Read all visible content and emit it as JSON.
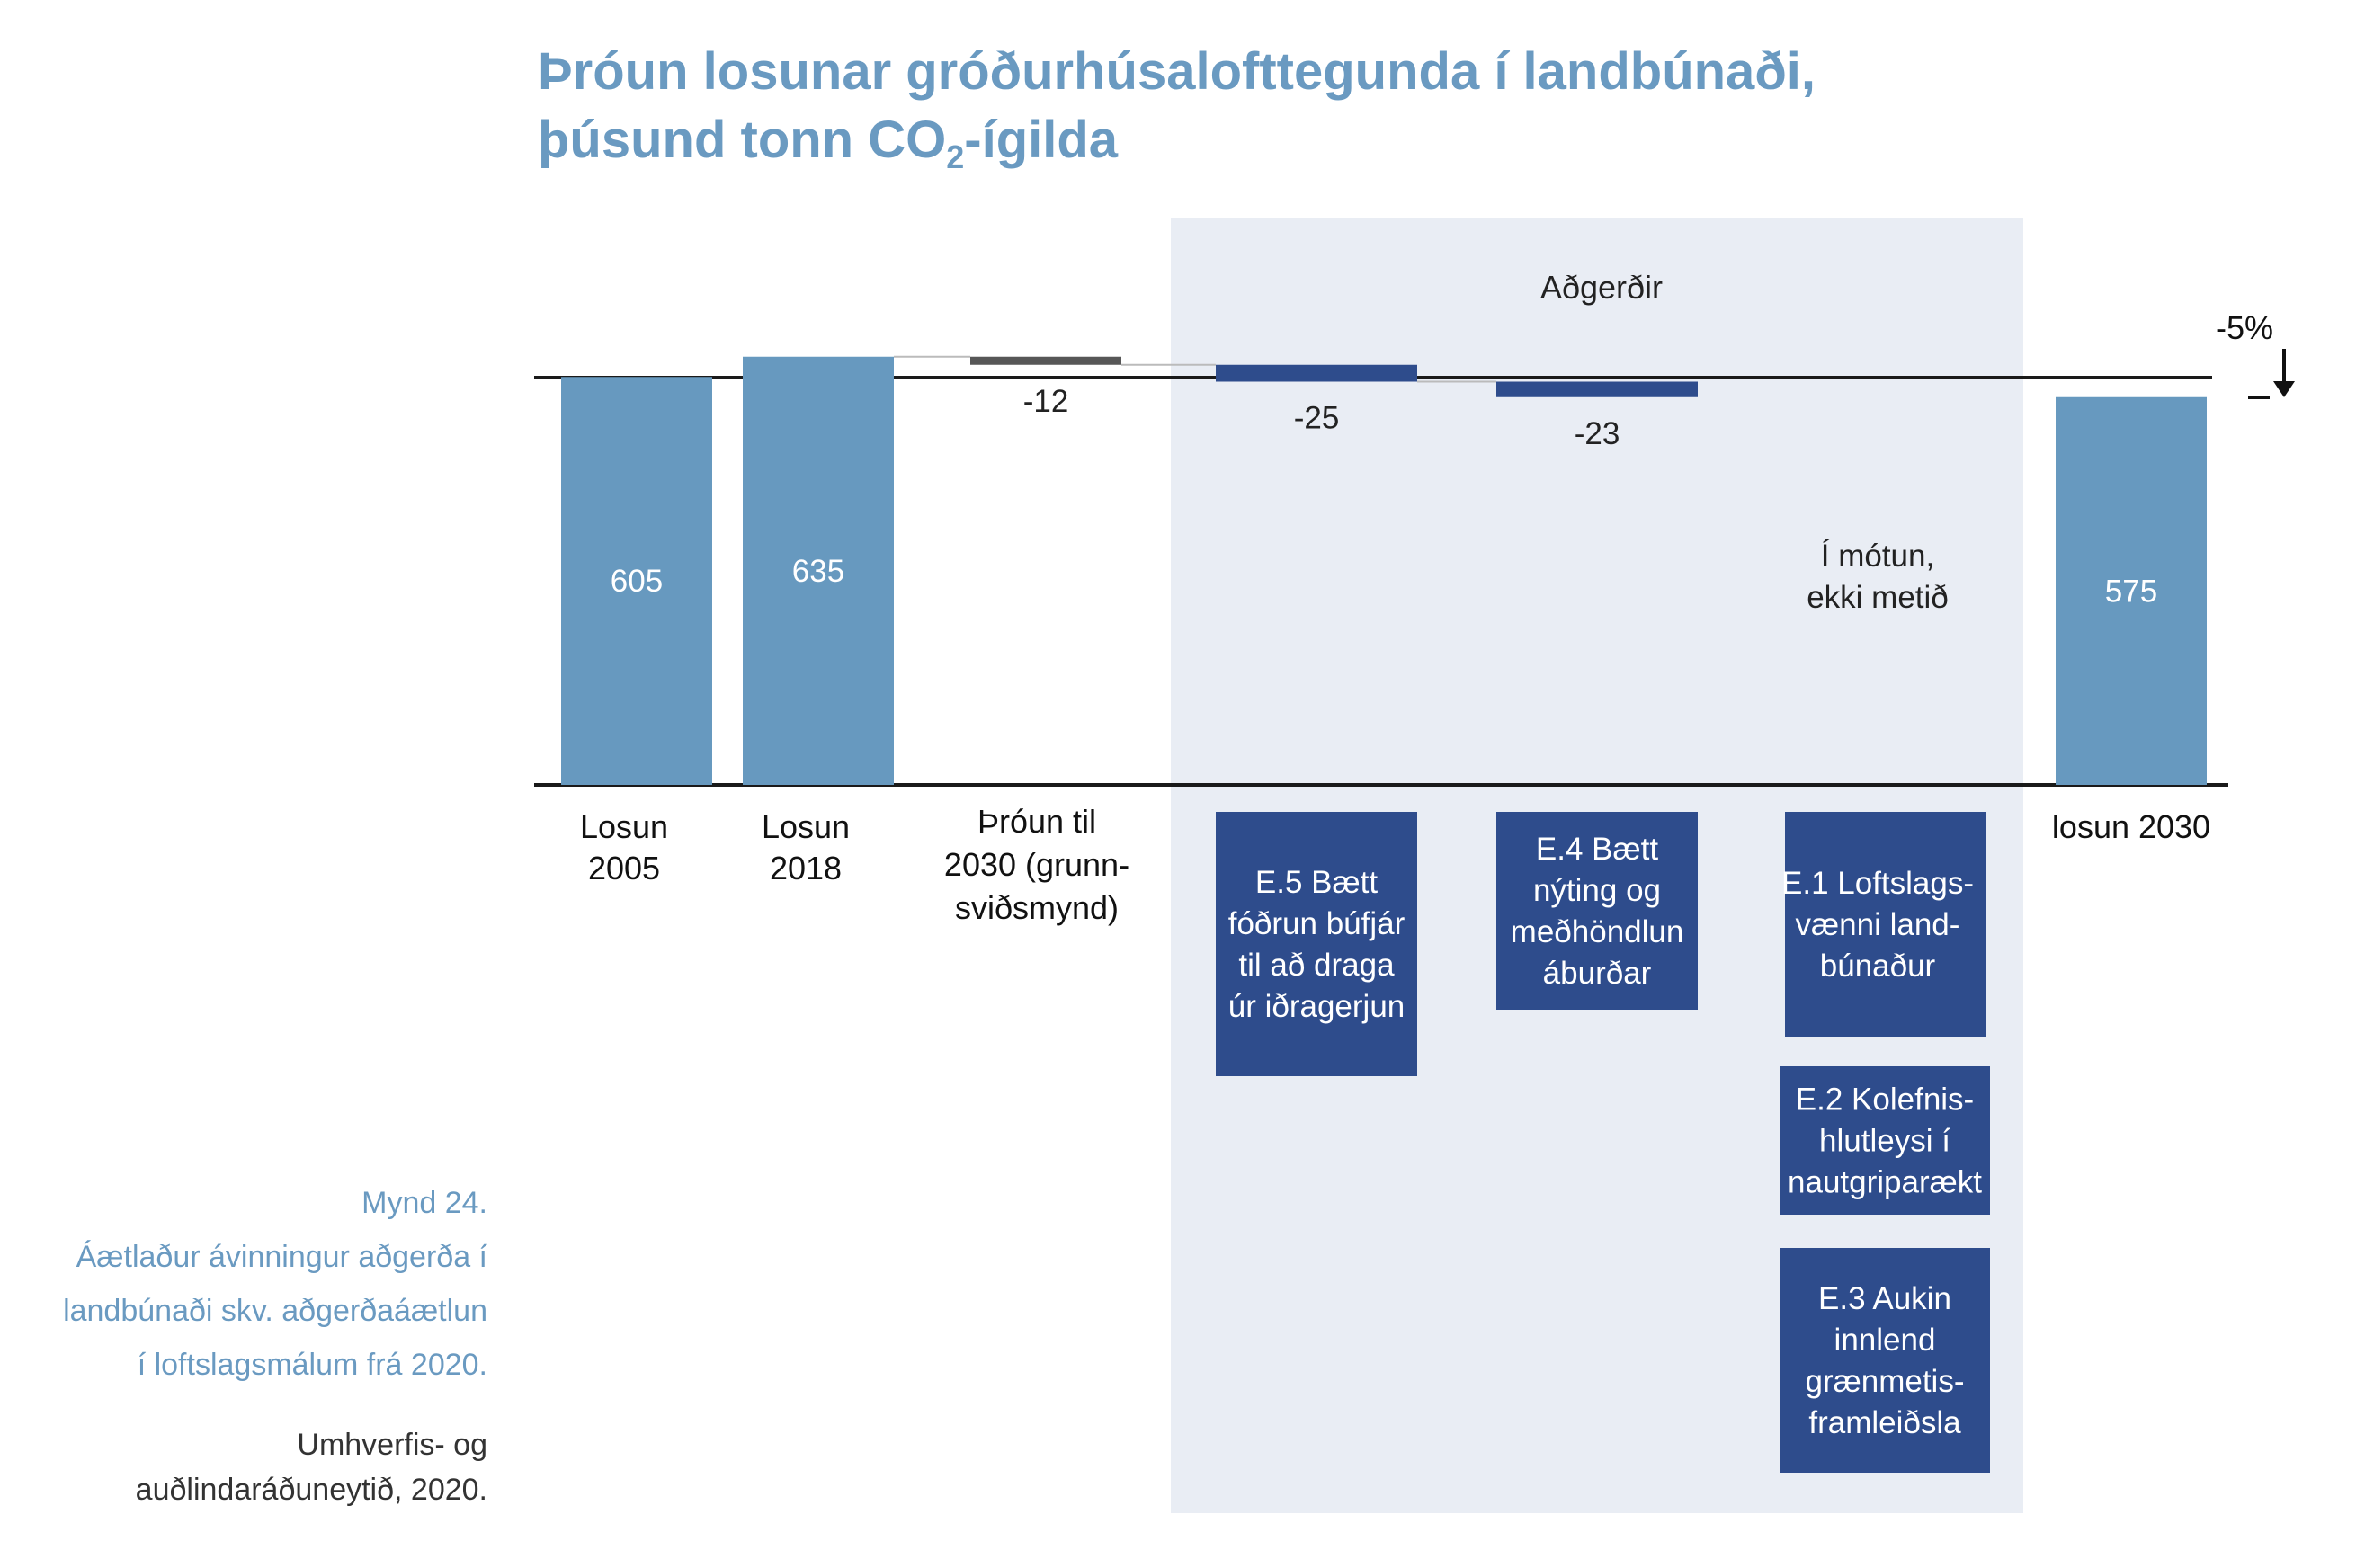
{
  "title": {
    "line1": "Þróun losunar gróðurhúsalofttegunda í landbúnaði,",
    "line2_pre": "þúsund tonn CO",
    "line2_sub": "2",
    "line2_post": "-ígilda"
  },
  "caption": {
    "figure": "Mynd 24.",
    "line1": "Áætlaður ávinningur aðgerða í",
    "line2": "landbúnaði skv. aðgerðaáætlun",
    "line3": "í loftslagsmálum frá 2020.",
    "source_line1": "Umhverfis- og",
    "source_line2": "auðlindaráðuneytið, 2020."
  },
  "colors": {
    "total_bar": "#6799bf",
    "grunn_bar": "#575757",
    "action_bar": "#2e4c8c",
    "action_box": "#2e4c8c",
    "panel": "#e9edf4",
    "title": "#6a9ac1",
    "axis": "#1a1a1a"
  },
  "chart_data": {
    "type": "waterfall",
    "unit": "þúsund tonn CO2-ígilda",
    "panel_label": "Aðgerðir",
    "change_label": "-5%",
    "not_assessed_line1": "Í mótun,",
    "not_assessed_line2": "ekki metið",
    "steps": [
      {
        "kind": "total",
        "value": 605,
        "value_label": "605",
        "label_lines": [
          "Losun",
          "2005"
        ]
      },
      {
        "kind": "total",
        "value": 635,
        "value_label": "635",
        "label_lines": [
          "Losun",
          "2018"
        ]
      },
      {
        "kind": "delta",
        "value": -12,
        "value_label": "-12",
        "label_lines": [
          "Þróun til",
          "2030 (grunn-",
          "sviðsmynd)"
        ]
      },
      {
        "kind": "delta",
        "value": -25,
        "value_label": "-25",
        "label_lines": [
          "E.5 Bætt",
          "fóðrun búfjár",
          "til að draga",
          "úr iðragerjun"
        ]
      },
      {
        "kind": "delta",
        "value": -23,
        "value_label": "-23",
        "label_lines": [
          "E.4 Bætt",
          "nýting og",
          "meðhöndlun",
          "áburðar"
        ]
      },
      {
        "kind": "unassessed",
        "value": null,
        "value_label": "",
        "label_lines": [
          "E.1 Loftslags-",
          "vænni land-",
          "búnaður"
        ]
      },
      {
        "kind": "total",
        "value": 575,
        "value_label": "575",
        "label_lines": [
          "losun 2030"
        ]
      }
    ],
    "extra_actions": [
      {
        "label_lines": [
          "E.2 Kolefnis-",
          "hlutleysi í",
          "nautgriparækt"
        ]
      },
      {
        "label_lines": [
          "E.3 Aukin",
          "innlend",
          "grænmetis-",
          "framleiðsla"
        ]
      }
    ]
  }
}
